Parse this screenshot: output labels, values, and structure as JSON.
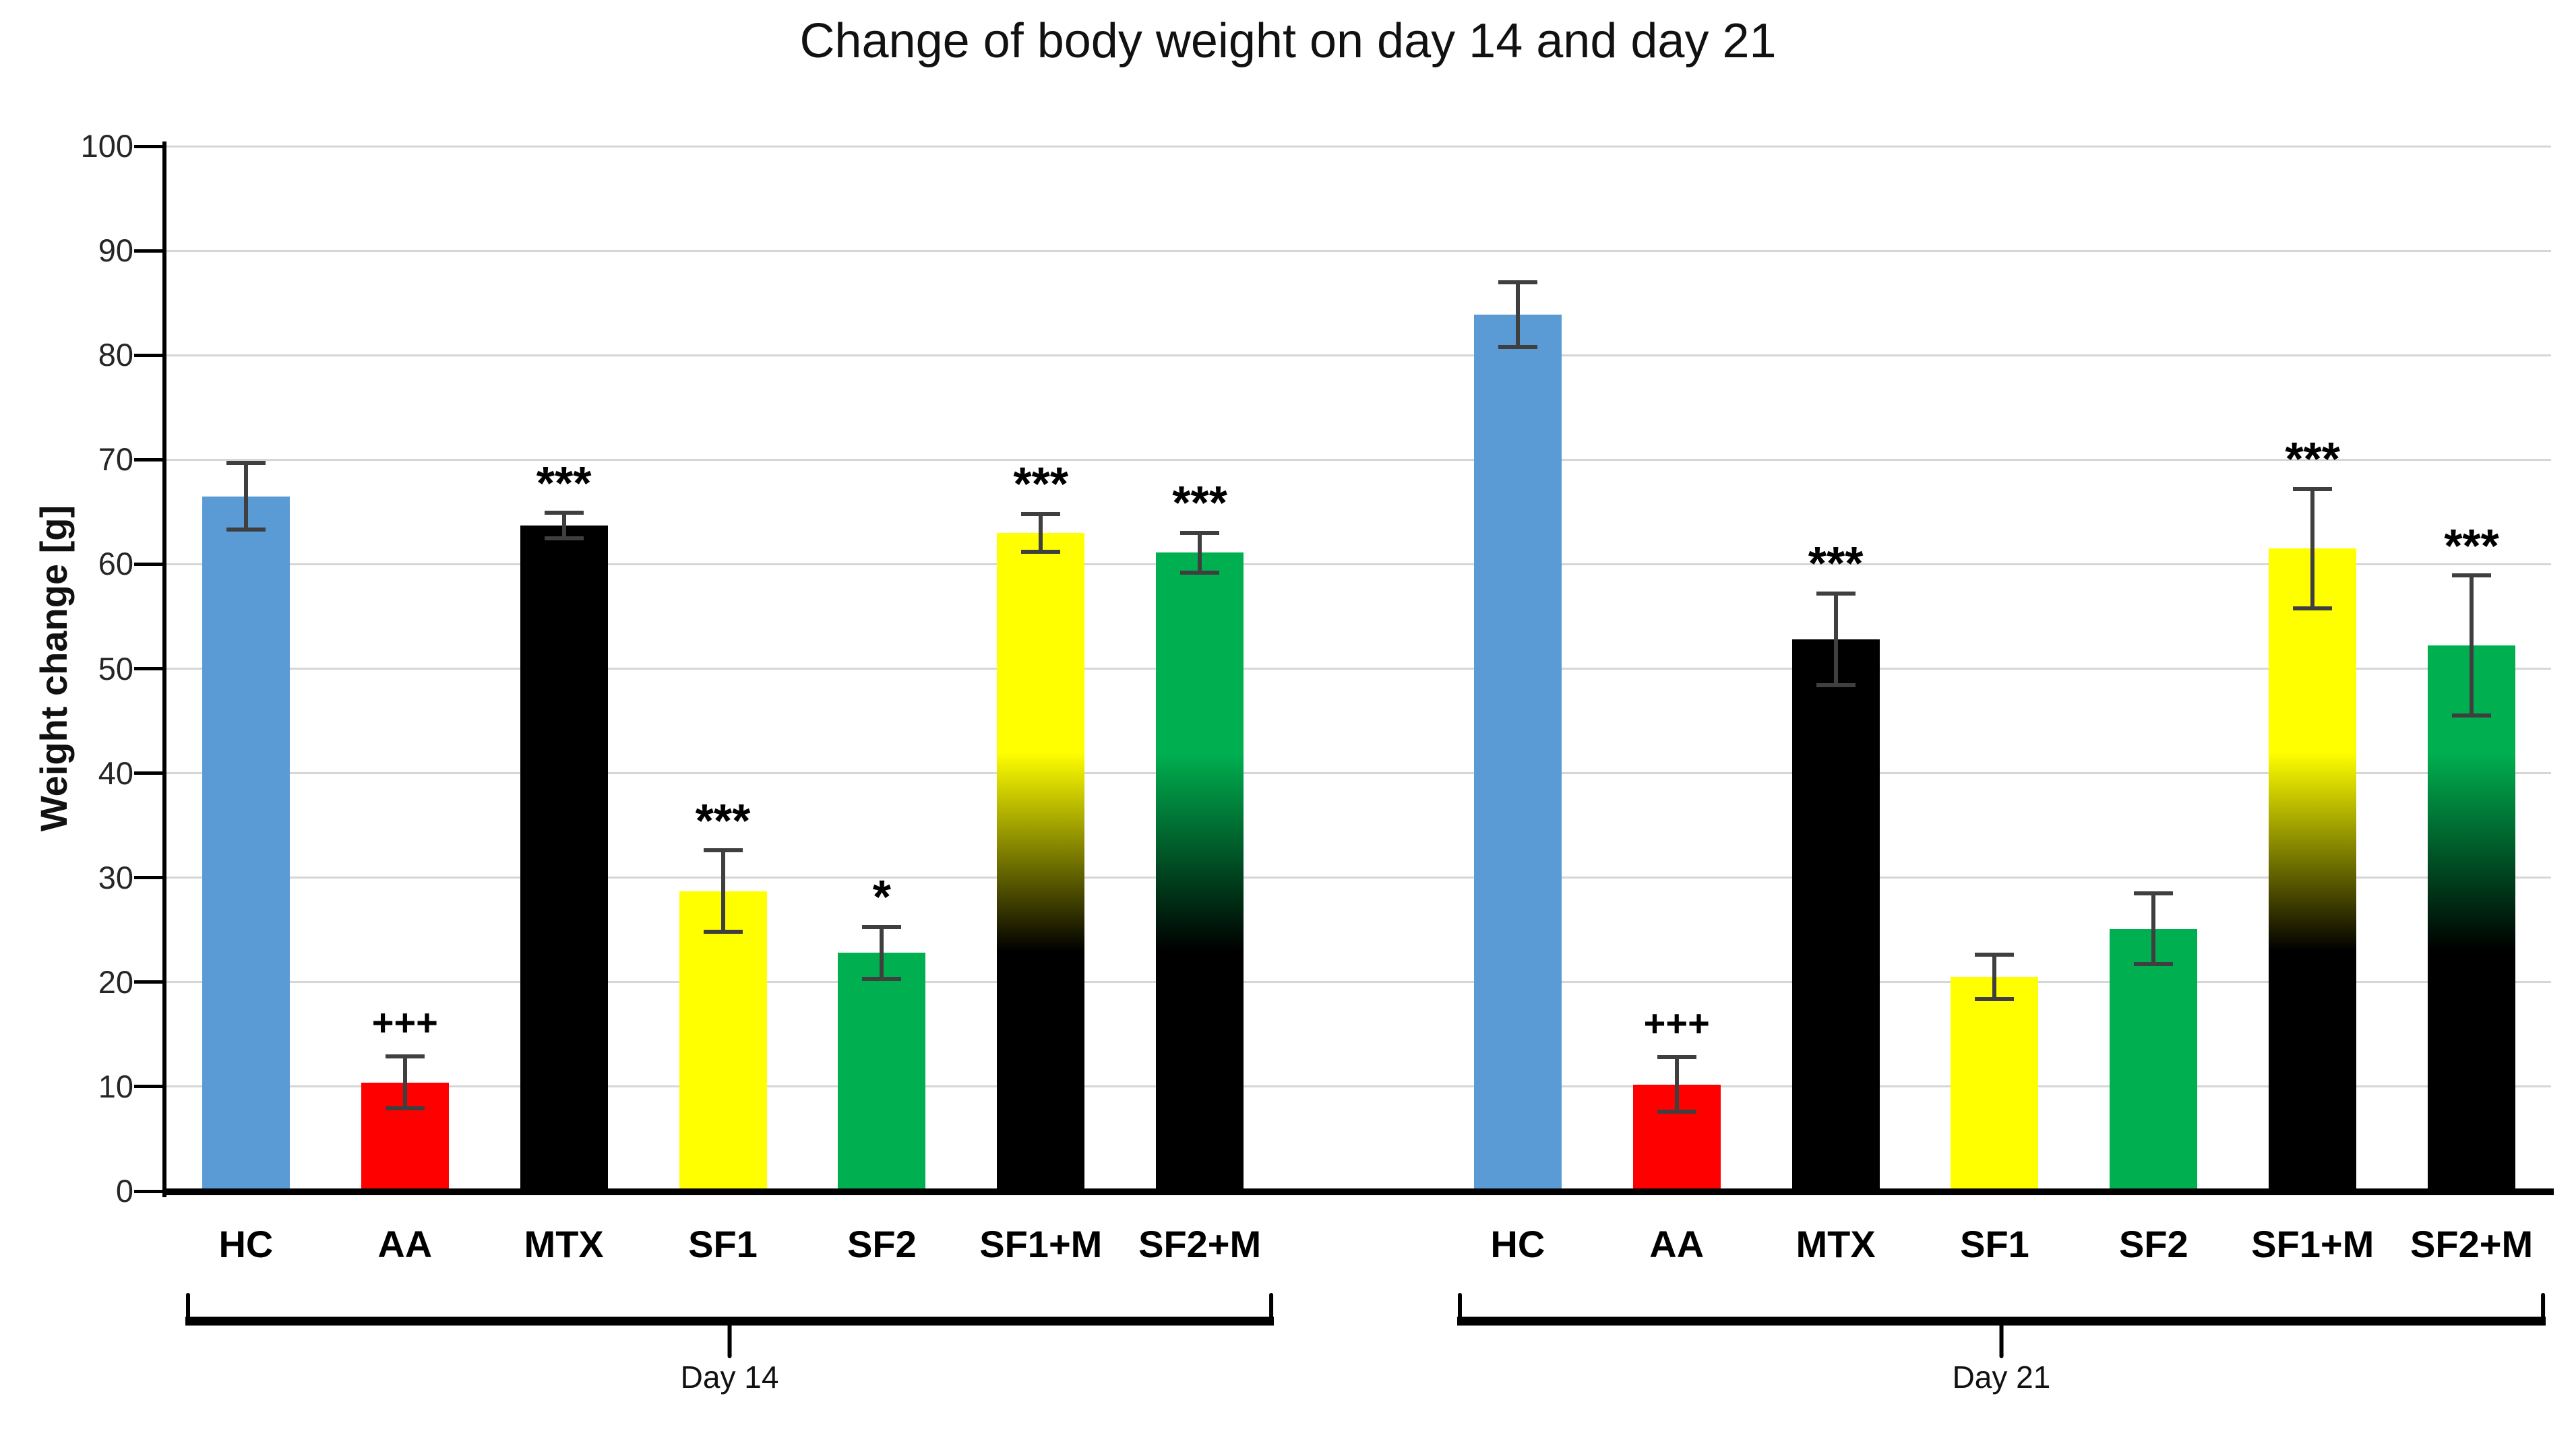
{
  "title": "Change of body weight on day 14 and day 21",
  "styles": {
    "background": "#FFFFFF",
    "axis_color": "#000000",
    "grid_color": "#D6D6D6",
    "error_bar_color": "#3F3F3F",
    "text_color": "#1A1A1A"
  },
  "chart_data": {
    "type": "bar",
    "title": "Change of body weight on day 14 and day 21",
    "xlabel": "",
    "ylabel": "Weight change [g]",
    "ylim": [
      0,
      100
    ],
    "ytick_step": 10,
    "yticks": [
      0,
      10,
      20,
      30,
      40,
      50,
      60,
      70,
      80,
      90,
      100
    ],
    "grid": true,
    "legend": "none",
    "categories": [
      "HC",
      "AA",
      "MTX",
      "SF1",
      "SF2",
      "SF1+M",
      "SF2+M"
    ],
    "bar_appearance": [
      {
        "type": "solid",
        "color": "#5B9BD5"
      },
      {
        "type": "solid",
        "color": "#FF0000"
      },
      {
        "type": "solid",
        "color": "#000000"
      },
      {
        "type": "solid",
        "color": "#FFFF00"
      },
      {
        "type": "solid",
        "color": "#00B050"
      },
      {
        "type": "gradient",
        "from": "#FFFF00",
        "to": "#000000"
      },
      {
        "type": "gradient",
        "from": "#00B050",
        "to": "#000000"
      }
    ],
    "gradient_fade": {
      "start_g": 42,
      "end_g": 23
    },
    "groups": [
      {
        "label": "Day 14",
        "values": [
          66.5,
          10.4,
          63.7,
          28.7,
          22.8,
          63.0,
          61.1
        ],
        "errors": [
          3.2,
          2.5,
          1.2,
          3.9,
          2.5,
          1.8,
          1.9
        ],
        "significance": [
          "",
          "+++",
          "***",
          "***",
          "*",
          "***",
          "***"
        ]
      },
      {
        "label": "Day 21",
        "values": [
          83.9,
          10.2,
          52.8,
          20.5,
          25.1,
          61.5,
          52.2
        ],
        "errors": [
          3.1,
          2.6,
          4.4,
          2.1,
          3.4,
          5.7,
          6.7
        ],
        "significance": [
          "",
          "+++",
          "***",
          "",
          "",
          "***",
          "***"
        ]
      }
    ]
  }
}
